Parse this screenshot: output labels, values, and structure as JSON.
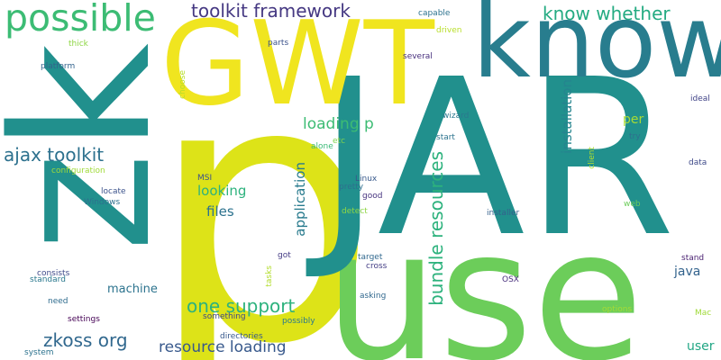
{
  "words": {
    "p": {
      "text": "p",
      "color": "#dde318"
    },
    "use": {
      "text": "use",
      "color": "#6ccd5a"
    },
    "jar": {
      "text": "JAR",
      "color": "#21908d"
    },
    "zk": {
      "text": "zk",
      "color": "#21908d"
    },
    "gwt": {
      "text": "GWT",
      "color": "#f0e51f"
    },
    "know": {
      "text": "know",
      "color": "#287d8e"
    },
    "possible": {
      "text": "possible",
      "color": "#3cbc74"
    },
    "toolkit_framework": {
      "text": "toolkit framework",
      "color": "#453882"
    },
    "know_whether": {
      "text": "know whether",
      "color": "#25ab82"
    },
    "ajax_toolkit": {
      "text": "ajax toolkit",
      "color": "#2d718e"
    },
    "one_support": {
      "text": "one support",
      "color": "#2db27d"
    },
    "zkoss_org": {
      "text": "zkoss org",
      "color": "#31688e"
    },
    "resource_loading": {
      "text": "resource loading",
      "color": "#38598c"
    },
    "bundle_resources": {
      "text": "bundle resources",
      "color": "#2db27d"
    },
    "loading_p": {
      "text": "loading p",
      "color": "#3dbc74"
    },
    "looking": {
      "text": "looking",
      "color": "#2db27d"
    },
    "files": {
      "text": "files",
      "color": "#2c728e"
    },
    "application": {
      "text": "application",
      "color": "#297b8e"
    },
    "installation": {
      "text": "installation",
      "color": "#25848e"
    },
    "per": {
      "text": "per",
      "color": "#a8db34"
    },
    "java": {
      "text": "java",
      "color": "#33638d"
    },
    "user": {
      "text": "user",
      "color": "#22a785"
    },
    "machine": {
      "text": "machine",
      "color": "#2c738e"
    },
    "configuration": {
      "text": "configuration",
      "color": "#a0da39"
    },
    "thick": {
      "text": "thick",
      "color": "#8ed645"
    },
    "platform": {
      "text": "platform",
      "color": "#33638d"
    },
    "choose": {
      "text": "choose",
      "color": "#b5de2b"
    },
    "parts": {
      "text": "parts",
      "color": "#3b528b"
    },
    "several": {
      "text": "several",
      "color": "#472f7d"
    },
    "capable": {
      "text": "capable",
      "color": "#2c728e"
    },
    "driven": {
      "text": "driven",
      "color": "#b8de29"
    },
    "ideal": {
      "text": "ideal",
      "color": "#404387"
    },
    "wizard": {
      "text": "wizard",
      "color": "#2a788e"
    },
    "try": {
      "text": "try",
      "color": "#2e6f8e"
    },
    "start": {
      "text": "start",
      "color": "#2c738e"
    },
    "alone": {
      "text": "alone",
      "color": "#3aba76"
    },
    "etc": {
      "text": "etc",
      "color": "#7fd34e"
    },
    "client": {
      "text": "client",
      "color": "#b0dd2f"
    },
    "data": {
      "text": "data",
      "color": "#3e4989"
    },
    "msi": {
      "text": "MSI",
      "color": "#3b528b"
    },
    "linux": {
      "text": "Linux",
      "color": "#38598c"
    },
    "pretty": {
      "text": "pretty",
      "color": "#2d708e"
    },
    "good": {
      "text": "good",
      "color": "#46337f"
    },
    "detect": {
      "text": "detect",
      "color": "#8ed645"
    },
    "installer": {
      "text": "installer",
      "color": "#34618d"
    },
    "web": {
      "text": "web",
      "color": "#6ccd5a"
    },
    "locate": {
      "text": "locate",
      "color": "#3b528b"
    },
    "windows": {
      "text": "Windows",
      "color": "#2d708e"
    },
    "tasks": {
      "text": "tasks",
      "color": "#b2dd2d"
    },
    "got": {
      "text": "got",
      "color": "#443b84"
    },
    "target": {
      "text": "target",
      "color": "#31688e"
    },
    "cross": {
      "text": "cross",
      "color": "#433d84"
    },
    "stand": {
      "text": "stand",
      "color": "#481f70"
    },
    "consists": {
      "text": "consists",
      "color": "#3e4989"
    },
    "standard": {
      "text": "standard",
      "color": "#2a788e"
    },
    "need": {
      "text": "need",
      "color": "#2f6c8e"
    },
    "asking": {
      "text": "asking",
      "color": "#31688e"
    },
    "osx": {
      "text": "OSX",
      "color": "#472d7b"
    },
    "options": {
      "text": "options",
      "color": "#a5db36"
    },
    "mac": {
      "text": "Mac",
      "color": "#a0da39"
    },
    "something": {
      "text": "something",
      "color": "#3f4788"
    },
    "settings": {
      "text": "settings",
      "color": "#440154"
    },
    "possibly": {
      "text": "possibly",
      "color": "#2a788e"
    },
    "directories": {
      "text": "directories",
      "color": "#38598c"
    },
    "system": {
      "text": "system",
      "color": "#2c728e"
    }
  }
}
